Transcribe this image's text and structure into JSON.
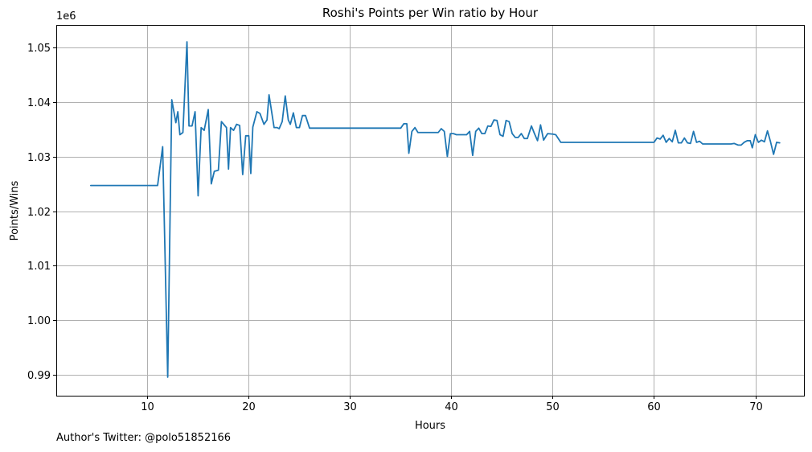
{
  "chart_data": {
    "type": "line",
    "title": "Roshi's Points per Win ratio by Hour",
    "xlabel": "Hours",
    "ylabel": "Points/Wins",
    "y_offset_text": "1e6",
    "xlim": [
      1.0,
      74.8
    ],
    "ylim": [
      986200,
      1054100
    ],
    "x_ticks": [
      10,
      20,
      30,
      40,
      50,
      60,
      70
    ],
    "y_ticks": [
      990000,
      1000000,
      1010000,
      1020000,
      1030000,
      1040000,
      1050000
    ],
    "y_tick_labels": [
      "0.99",
      "1.00",
      "1.01",
      "1.02",
      "1.03",
      "1.04",
      "1.05"
    ],
    "grid": true,
    "series": [
      {
        "color": "#1f77b4",
        "points": [
          [
            4.4,
            1024700
          ],
          [
            11.0,
            1024700
          ],
          [
            11.5,
            1031800
          ],
          [
            12.0,
            989600
          ],
          [
            12.4,
            1040400
          ],
          [
            12.8,
            1036200
          ],
          [
            13.0,
            1038200
          ],
          [
            13.2,
            1034000
          ],
          [
            13.5,
            1034400
          ],
          [
            13.9,
            1051000
          ],
          [
            14.1,
            1035600
          ],
          [
            14.4,
            1035600
          ],
          [
            14.7,
            1038200
          ],
          [
            15.0,
            1022800
          ],
          [
            15.3,
            1035300
          ],
          [
            15.6,
            1034800
          ],
          [
            15.8,
            1036700
          ],
          [
            16.0,
            1038600
          ],
          [
            16.3,
            1025000
          ],
          [
            16.6,
            1027300
          ],
          [
            17.0,
            1027500
          ],
          [
            17.3,
            1036400
          ],
          [
            17.8,
            1035300
          ],
          [
            18.0,
            1027700
          ],
          [
            18.2,
            1035300
          ],
          [
            18.5,
            1034800
          ],
          [
            18.8,
            1035900
          ],
          [
            19.1,
            1035700
          ],
          [
            19.4,
            1026700
          ],
          [
            19.7,
            1033800
          ],
          [
            20.0,
            1033800
          ],
          [
            20.2,
            1026900
          ],
          [
            20.4,
            1035400
          ],
          [
            20.8,
            1038200
          ],
          [
            21.1,
            1037900
          ],
          [
            21.5,
            1035900
          ],
          [
            21.8,
            1036700
          ],
          [
            22.0,
            1041300
          ],
          [
            22.5,
            1035300
          ],
          [
            22.8,
            1035300
          ],
          [
            23.0,
            1035100
          ],
          [
            23.3,
            1036400
          ],
          [
            23.6,
            1041100
          ],
          [
            23.9,
            1036700
          ],
          [
            24.1,
            1035900
          ],
          [
            24.4,
            1038000
          ],
          [
            24.7,
            1035300
          ],
          [
            25.0,
            1035300
          ],
          [
            25.3,
            1037500
          ],
          [
            25.6,
            1037500
          ],
          [
            26.0,
            1035200
          ],
          [
            35.0,
            1035200
          ],
          [
            35.3,
            1036000
          ],
          [
            35.6,
            1036000
          ],
          [
            35.8,
            1030600
          ],
          [
            36.1,
            1034600
          ],
          [
            36.4,
            1035300
          ],
          [
            36.7,
            1034400
          ],
          [
            38.7,
            1034400
          ],
          [
            39.0,
            1035100
          ],
          [
            39.3,
            1034600
          ],
          [
            39.6,
            1030000
          ],
          [
            39.9,
            1034200
          ],
          [
            40.2,
            1034200
          ],
          [
            40.5,
            1034000
          ],
          [
            41.5,
            1034000
          ],
          [
            41.8,
            1034600
          ],
          [
            42.1,
            1030200
          ],
          [
            42.4,
            1034600
          ],
          [
            42.7,
            1035200
          ],
          [
            43.0,
            1034200
          ],
          [
            43.3,
            1034200
          ],
          [
            43.6,
            1035600
          ],
          [
            43.9,
            1035500
          ],
          [
            44.2,
            1036700
          ],
          [
            44.5,
            1036600
          ],
          [
            44.8,
            1034000
          ],
          [
            45.1,
            1033700
          ],
          [
            45.4,
            1036600
          ],
          [
            45.7,
            1036400
          ],
          [
            46.0,
            1034200
          ],
          [
            46.3,
            1033500
          ],
          [
            46.6,
            1033500
          ],
          [
            46.9,
            1034200
          ],
          [
            47.2,
            1033300
          ],
          [
            47.5,
            1033300
          ],
          [
            47.9,
            1035600
          ],
          [
            48.2,
            1034200
          ],
          [
            48.5,
            1032900
          ],
          [
            48.8,
            1035800
          ],
          [
            49.1,
            1033000
          ],
          [
            49.5,
            1034200
          ],
          [
            50.0,
            1034100
          ],
          [
            50.3,
            1034000
          ],
          [
            50.8,
            1032600
          ],
          [
            60.0,
            1032600
          ],
          [
            60.3,
            1033400
          ],
          [
            60.6,
            1033200
          ],
          [
            60.9,
            1033900
          ],
          [
            61.2,
            1032600
          ],
          [
            61.5,
            1033300
          ],
          [
            61.8,
            1032700
          ],
          [
            62.1,
            1034800
          ],
          [
            62.4,
            1032500
          ],
          [
            62.7,
            1032500
          ],
          [
            63.0,
            1033400
          ],
          [
            63.3,
            1032500
          ],
          [
            63.6,
            1032400
          ],
          [
            63.9,
            1034600
          ],
          [
            64.2,
            1032600
          ],
          [
            64.5,
            1032800
          ],
          [
            64.8,
            1032300
          ],
          [
            67.6,
            1032300
          ],
          [
            67.9,
            1032400
          ],
          [
            68.3,
            1032100
          ],
          [
            68.6,
            1032100
          ],
          [
            68.9,
            1032600
          ],
          [
            69.2,
            1032900
          ],
          [
            69.5,
            1032900
          ],
          [
            69.7,
            1031600
          ],
          [
            70.0,
            1034000
          ],
          [
            70.3,
            1032600
          ],
          [
            70.6,
            1033000
          ],
          [
            70.9,
            1032700
          ],
          [
            71.2,
            1034700
          ],
          [
            71.5,
            1032700
          ],
          [
            71.8,
            1030400
          ],
          [
            72.1,
            1032600
          ],
          [
            72.4,
            1032500
          ]
        ]
      }
    ]
  },
  "footer": {
    "note": "Author's Twitter: @polo51852166"
  }
}
